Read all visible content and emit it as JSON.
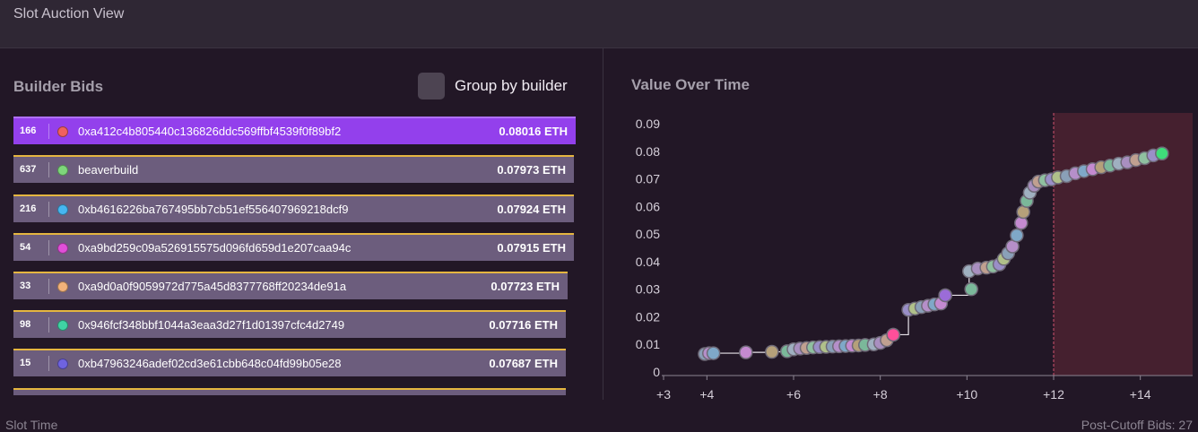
{
  "header": {
    "title": "Slot Auction View"
  },
  "bids_section": {
    "title": "Builder Bids",
    "group_label": "Group by builder",
    "rows": [
      {
        "count": "166",
        "builder": "0xa412c4b805440c136826ddc569ffbf4539f0f89bf2",
        "value": "0.08016 ETH",
        "color": "#f0605e"
      },
      {
        "count": "637",
        "builder": "beaverbuild",
        "value": "0.07973 ETH",
        "color": "#7ed67b"
      },
      {
        "count": "216",
        "builder": "0xb4616226ba767495bb7cb51ef556407969218dcf9",
        "value": "0.07924 ETH",
        "color": "#46b6f0"
      },
      {
        "count": "54",
        "builder": "0xa9bd259c09a526915575d096fd659d1e207caa94c",
        "value": "0.07915 ETH",
        "color": "#e04fd8"
      },
      {
        "count": "33",
        "builder": "0xa9d0a0f9059972d775a45d8377768ff20234de91a",
        "value": "0.07723 ETH",
        "color": "#f2b27a"
      },
      {
        "count": "98",
        "builder": "0x946fcf348bbf1044a3eaa3d27f1d01397cfc4d2749",
        "value": "0.07716 ETH",
        "color": "#3fd3a4"
      },
      {
        "count": "15",
        "builder": "0xb47963246adef02cd3e61cbb648c04fd99b05e28",
        "value": "0.07687 ETH",
        "color": "#6f63e0"
      }
    ]
  },
  "chart_section": {
    "title": "Value Over Time"
  },
  "chart_data": {
    "type": "scatter",
    "x_ticks": [
      "+3",
      "+4",
      "+6",
      "+8",
      "+10",
      "+12",
      "+14"
    ],
    "y_ticks": [
      "0",
      "0.01",
      "0.02",
      "0.03",
      "0.04",
      "0.05",
      "0.06",
      "0.07",
      "0.08",
      "0.09"
    ],
    "xlim": [
      3,
      15
    ],
    "ylim": [
      0,
      0.09
    ],
    "cutoff_x": 12,
    "cutoff_shade_color": "#45202f",
    "series_color": "#c9c2ce",
    "points": [
      [
        3.95,
        0.0065
      ],
      [
        4.05,
        0.0068
      ],
      [
        4.15,
        0.0068
      ],
      [
        4.9,
        0.0071
      ],
      [
        5.5,
        0.0073
      ],
      [
        5.85,
        0.0075
      ],
      [
        6.0,
        0.0082
      ],
      [
        6.15,
        0.0085
      ],
      [
        6.3,
        0.0087
      ],
      [
        6.45,
        0.0089
      ],
      [
        6.6,
        0.009
      ],
      [
        6.75,
        0.0091
      ],
      [
        6.9,
        0.0092
      ],
      [
        7.05,
        0.0093
      ],
      [
        7.2,
        0.0094
      ],
      [
        7.35,
        0.0095
      ],
      [
        7.5,
        0.0096
      ],
      [
        7.65,
        0.0098
      ],
      [
        7.85,
        0.01
      ],
      [
        8.0,
        0.0105
      ],
      [
        8.15,
        0.0115
      ],
      [
        8.3,
        0.0135
      ],
      [
        8.65,
        0.0225
      ],
      [
        8.8,
        0.023
      ],
      [
        8.95,
        0.0235
      ],
      [
        9.1,
        0.024
      ],
      [
        9.25,
        0.0245
      ],
      [
        9.4,
        0.0248
      ],
      [
        9.5,
        0.0278
      ],
      [
        10.1,
        0.03
      ],
      [
        10.05,
        0.0365
      ],
      [
        10.25,
        0.0375
      ],
      [
        10.45,
        0.0378
      ],
      [
        10.6,
        0.0382
      ],
      [
        10.75,
        0.039
      ],
      [
        10.85,
        0.041
      ],
      [
        10.95,
        0.043
      ],
      [
        11.05,
        0.0455
      ],
      [
        11.15,
        0.0495
      ],
      [
        11.25,
        0.054
      ],
      [
        11.3,
        0.058
      ],
      [
        11.38,
        0.062
      ],
      [
        11.45,
        0.065
      ],
      [
        11.55,
        0.0675
      ],
      [
        11.65,
        0.069
      ],
      [
        11.8,
        0.0695
      ],
      [
        11.95,
        0.0698
      ],
      [
        12.1,
        0.0705
      ],
      [
        12.3,
        0.071
      ],
      [
        12.5,
        0.072
      ],
      [
        12.7,
        0.0728
      ],
      [
        12.9,
        0.0735
      ],
      [
        13.1,
        0.0742
      ],
      [
        13.3,
        0.0748
      ],
      [
        13.5,
        0.0755
      ],
      [
        13.7,
        0.076
      ],
      [
        13.9,
        0.0768
      ],
      [
        14.1,
        0.0775
      ],
      [
        14.3,
        0.0785
      ],
      [
        14.5,
        0.0792
      ]
    ],
    "point_colors": [
      "#8aa0b8",
      "#b58fc9",
      "#7fa8c8",
      "#c48ad0",
      "#b5a07a",
      "#7bb89a",
      "#9fb0c0",
      "#a98fc0",
      "#c0a090",
      "#8fc0a0",
      "#9a8fc8",
      "#b0c08a"
    ],
    "highlight_points": [
      {
        "x": 8.3,
        "y": 0.0135,
        "color": "#ff4f9a"
      },
      {
        "x": 14.5,
        "y": 0.0792,
        "color": "#3fdc7a"
      },
      {
        "x": 9.5,
        "y": 0.0278,
        "color": "#9b6cd8"
      }
    ]
  },
  "footer": {
    "left_label": "Slot Time",
    "right_label": "Post-Cutoff Bids: 27"
  }
}
